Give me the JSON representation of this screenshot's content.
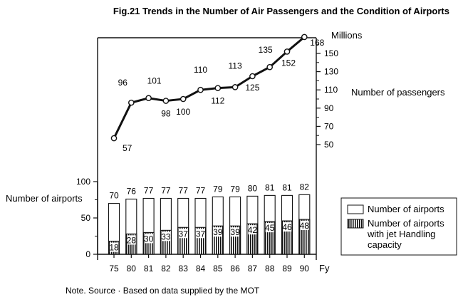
{
  "chart_data": {
    "type": "bar+line",
    "title": "Fig.21   Trends in the Number of Air Passengers and the Condition of Airports",
    "categories": [
      "75",
      "80",
      "81",
      "82",
      "83",
      "84",
      "85",
      "86",
      "87",
      "88",
      "89",
      "90"
    ],
    "x_unit": "Fy",
    "passengers": {
      "label": "Number of passengers",
      "unit": "Millions",
      "values": [
        57,
        96,
        101,
        98,
        100,
        110,
        112,
        113,
        125,
        135,
        152,
        168
      ],
      "ticks": [
        50,
        70,
        90,
        110,
        130,
        150
      ],
      "ylim": [
        46,
        168
      ]
    },
    "airports": {
      "label": "Number of airports",
      "ticks": [
        0,
        50,
        100
      ],
      "ylim": [
        0,
        100
      ],
      "series": [
        {
          "name": "Number of airports",
          "values": [
            70,
            76,
            77,
            77,
            77,
            77,
            79,
            79,
            80,
            81,
            81,
            82
          ]
        },
        {
          "name": "Number of airports with jet Handling capacity",
          "values": [
            18,
            28,
            30,
            33,
            37,
            37,
            39,
            39,
            42,
            45,
            46,
            48
          ]
        }
      ]
    },
    "legend": {
      "position": "right",
      "entries": [
        {
          "lines": [
            "Number of airports"
          ]
        },
        {
          "lines": [
            "Number of airports",
            "with jet Handling",
            "capacity"
          ]
        }
      ]
    },
    "note": "Note. Source · Based on data supplied by the MOT"
  }
}
